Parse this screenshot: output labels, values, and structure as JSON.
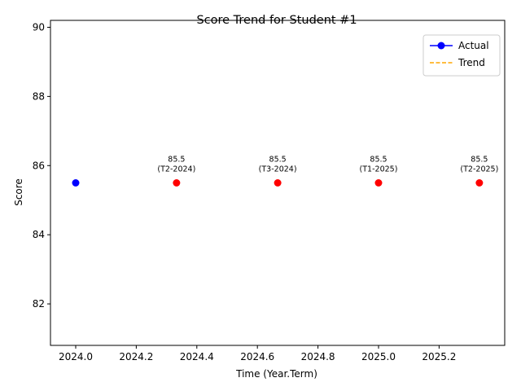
{
  "chart_data": {
    "type": "scatter",
    "title": "Score Trend for Student #1",
    "xlabel": "Time (Year.Term)",
    "ylabel": "Score",
    "xlim": [
      2023.9167,
      2025.4167
    ],
    "ylim": [
      80.8,
      90.2
    ],
    "xticks": [
      2024.0,
      2024.2,
      2024.4,
      2024.6,
      2024.8,
      2025.0,
      2025.2
    ],
    "xtick_labels": [
      "2024.0",
      "2024.2",
      "2024.4",
      "2024.6",
      "2024.8",
      "2025.0",
      "2025.2"
    ],
    "yticks": [
      82,
      84,
      86,
      88,
      90
    ],
    "ytick_labels": [
      "82",
      "84",
      "86",
      "88",
      "90"
    ],
    "grid": false,
    "legend_placement": "top-right",
    "series": [
      {
        "name": "Actual",
        "style": "line-with-markers",
        "color": "#0000ff",
        "x": [
          2024.0
        ],
        "y": [
          85.5
        ]
      },
      {
        "name": "Trend",
        "style": "dashed-line",
        "color": "#ffa500",
        "x": [],
        "y": []
      },
      {
        "style": "markers",
        "color": "#ff0000",
        "x": [
          2024.333,
          2024.667,
          2025.0,
          2025.333
        ],
        "y": [
          85.5,
          85.5,
          85.5,
          85.5
        ],
        "annotations": [
          {
            "value": "85.5",
            "term": "(T2-2024)"
          },
          {
            "value": "85.5",
            "term": "(T3-2024)"
          },
          {
            "value": "85.5",
            "term": "(T1-2025)"
          },
          {
            "value": "85.5",
            "term": "(T2-2025)"
          }
        ]
      }
    ]
  }
}
